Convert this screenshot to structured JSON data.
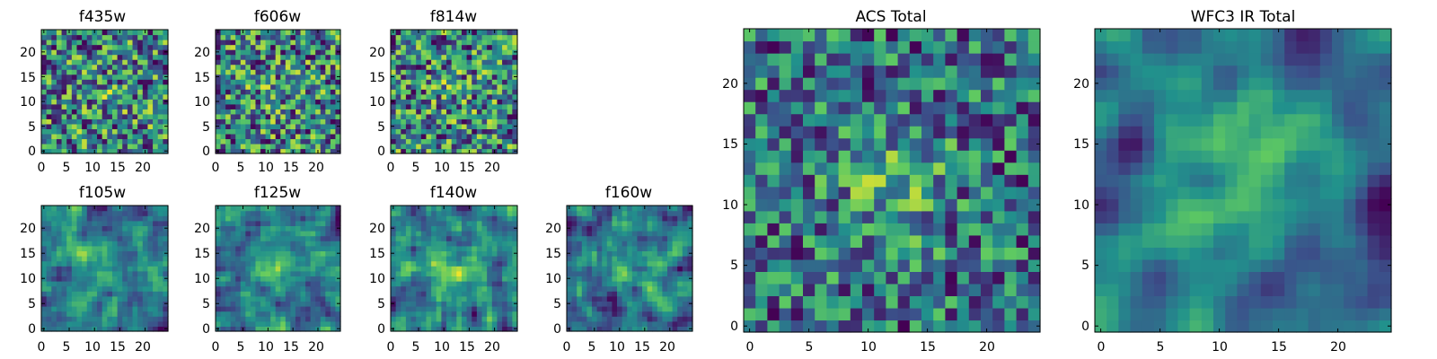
{
  "figure": {
    "cmap": [
      "#440154",
      "#3b528b",
      "#21918c",
      "#5ec962",
      "#fde725"
    ]
  },
  "chart_data": [
    {
      "type": "heatmap",
      "title": "f435w",
      "size": 25,
      "seed": 11,
      "smooth": 0,
      "blob": 0.08,
      "xlim": [
        0,
        24
      ],
      "ylim": [
        0,
        24
      ],
      "x_ticks": [
        0,
        5,
        10,
        15,
        20
      ],
      "y_ticks": [
        0,
        5,
        10,
        15,
        20
      ],
      "x_tick_labels": [
        "0",
        "5",
        "10",
        "15",
        "20"
      ],
      "y_tick_labels": [
        "0",
        "5",
        "10",
        "15",
        "20"
      ]
    },
    {
      "type": "heatmap",
      "title": "f606w",
      "size": 25,
      "seed": 23,
      "smooth": 0,
      "blob": 0.08,
      "xlim": [
        0,
        24
      ],
      "ylim": [
        0,
        24
      ],
      "x_ticks": [
        0,
        5,
        10,
        15,
        20
      ],
      "y_ticks": [
        0,
        5,
        10,
        15,
        20
      ],
      "x_tick_labels": [
        "0",
        "5",
        "10",
        "15",
        "20"
      ],
      "y_tick_labels": [
        "0",
        "5",
        "10",
        "15",
        "20"
      ]
    },
    {
      "type": "heatmap",
      "title": "f814w",
      "size": 25,
      "seed": 37,
      "smooth": 0,
      "blob": 0.08,
      "xlim": [
        0,
        24
      ],
      "ylim": [
        0,
        24
      ],
      "x_ticks": [
        0,
        5,
        10,
        15,
        20
      ],
      "y_ticks": [
        0,
        5,
        10,
        15,
        20
      ],
      "x_tick_labels": [
        "0",
        "5",
        "10",
        "15",
        "20"
      ],
      "y_tick_labels": [
        "0",
        "5",
        "10",
        "15",
        "20"
      ]
    },
    {
      "type": "heatmap",
      "title": "f105w",
      "size": 25,
      "seed": 41,
      "smooth": 1,
      "blob": 0.2,
      "xlim": [
        0,
        24
      ],
      "ylim": [
        0,
        24
      ],
      "x_ticks": [
        0,
        5,
        10,
        15,
        20
      ],
      "y_ticks": [
        0,
        5,
        10,
        15,
        20
      ],
      "x_tick_labels": [
        "0",
        "5",
        "10",
        "15",
        "20"
      ],
      "y_tick_labels": [
        "0",
        "5",
        "10",
        "15",
        "20"
      ]
    },
    {
      "type": "heatmap",
      "title": "f125w",
      "size": 25,
      "seed": 53,
      "smooth": 1,
      "blob": 0.2,
      "xlim": [
        0,
        24
      ],
      "ylim": [
        0,
        24
      ],
      "x_ticks": [
        0,
        5,
        10,
        15,
        20
      ],
      "y_ticks": [
        0,
        5,
        10,
        15,
        20
      ],
      "x_tick_labels": [
        "0",
        "5",
        "10",
        "15",
        "20"
      ],
      "y_tick_labels": [
        "0",
        "5",
        "10",
        "15",
        "20"
      ]
    },
    {
      "type": "heatmap",
      "title": "f140w",
      "size": 25,
      "seed": 67,
      "smooth": 1,
      "blob": 0.2,
      "xlim": [
        0,
        24
      ],
      "ylim": [
        0,
        24
      ],
      "x_ticks": [
        0,
        5,
        10,
        15,
        20
      ],
      "y_ticks": [
        0,
        5,
        10,
        15,
        20
      ],
      "x_tick_labels": [
        "0",
        "5",
        "10",
        "15",
        "20"
      ],
      "y_tick_labels": [
        "0",
        "5",
        "10",
        "15",
        "20"
      ]
    },
    {
      "type": "heatmap",
      "title": "f160w",
      "size": 25,
      "seed": 79,
      "smooth": 1,
      "blob": 0.25,
      "xlim": [
        0,
        24
      ],
      "ylim": [
        0,
        24
      ],
      "x_ticks": [
        0,
        5,
        10,
        15,
        20
      ],
      "y_ticks": [
        0,
        5,
        10,
        15,
        20
      ],
      "x_tick_labels": [
        "0",
        "5",
        "10",
        "15",
        "20"
      ],
      "y_tick_labels": [
        "0",
        "5",
        "10",
        "15",
        "20"
      ]
    },
    {
      "type": "heatmap",
      "title": "ACS Total",
      "size": 25,
      "seed": 97,
      "smooth": 0,
      "blob": 0.25,
      "xlim": [
        0,
        24
      ],
      "ylim": [
        0,
        24
      ],
      "x_ticks": [
        0,
        5,
        10,
        15,
        20
      ],
      "y_ticks": [
        0,
        5,
        10,
        15,
        20
      ],
      "x_tick_labels": [
        "0",
        "5",
        "10",
        "15",
        "20"
      ],
      "y_tick_labels": [
        "0",
        "5",
        "10",
        "15",
        "20"
      ]
    },
    {
      "type": "heatmap",
      "title": "WFC3 IR Total",
      "size": 25,
      "seed": 113,
      "smooth": 2,
      "blob": 0.35,
      "xlim": [
        0,
        24
      ],
      "ylim": [
        0,
        24
      ],
      "x_ticks": [
        0,
        5,
        10,
        15,
        20
      ],
      "y_ticks": [
        0,
        5,
        10,
        15,
        20
      ],
      "x_tick_labels": [
        "0",
        "5",
        "10",
        "15",
        "20"
      ],
      "y_tick_labels": [
        "0",
        "5",
        "10",
        "15",
        "20"
      ]
    }
  ]
}
